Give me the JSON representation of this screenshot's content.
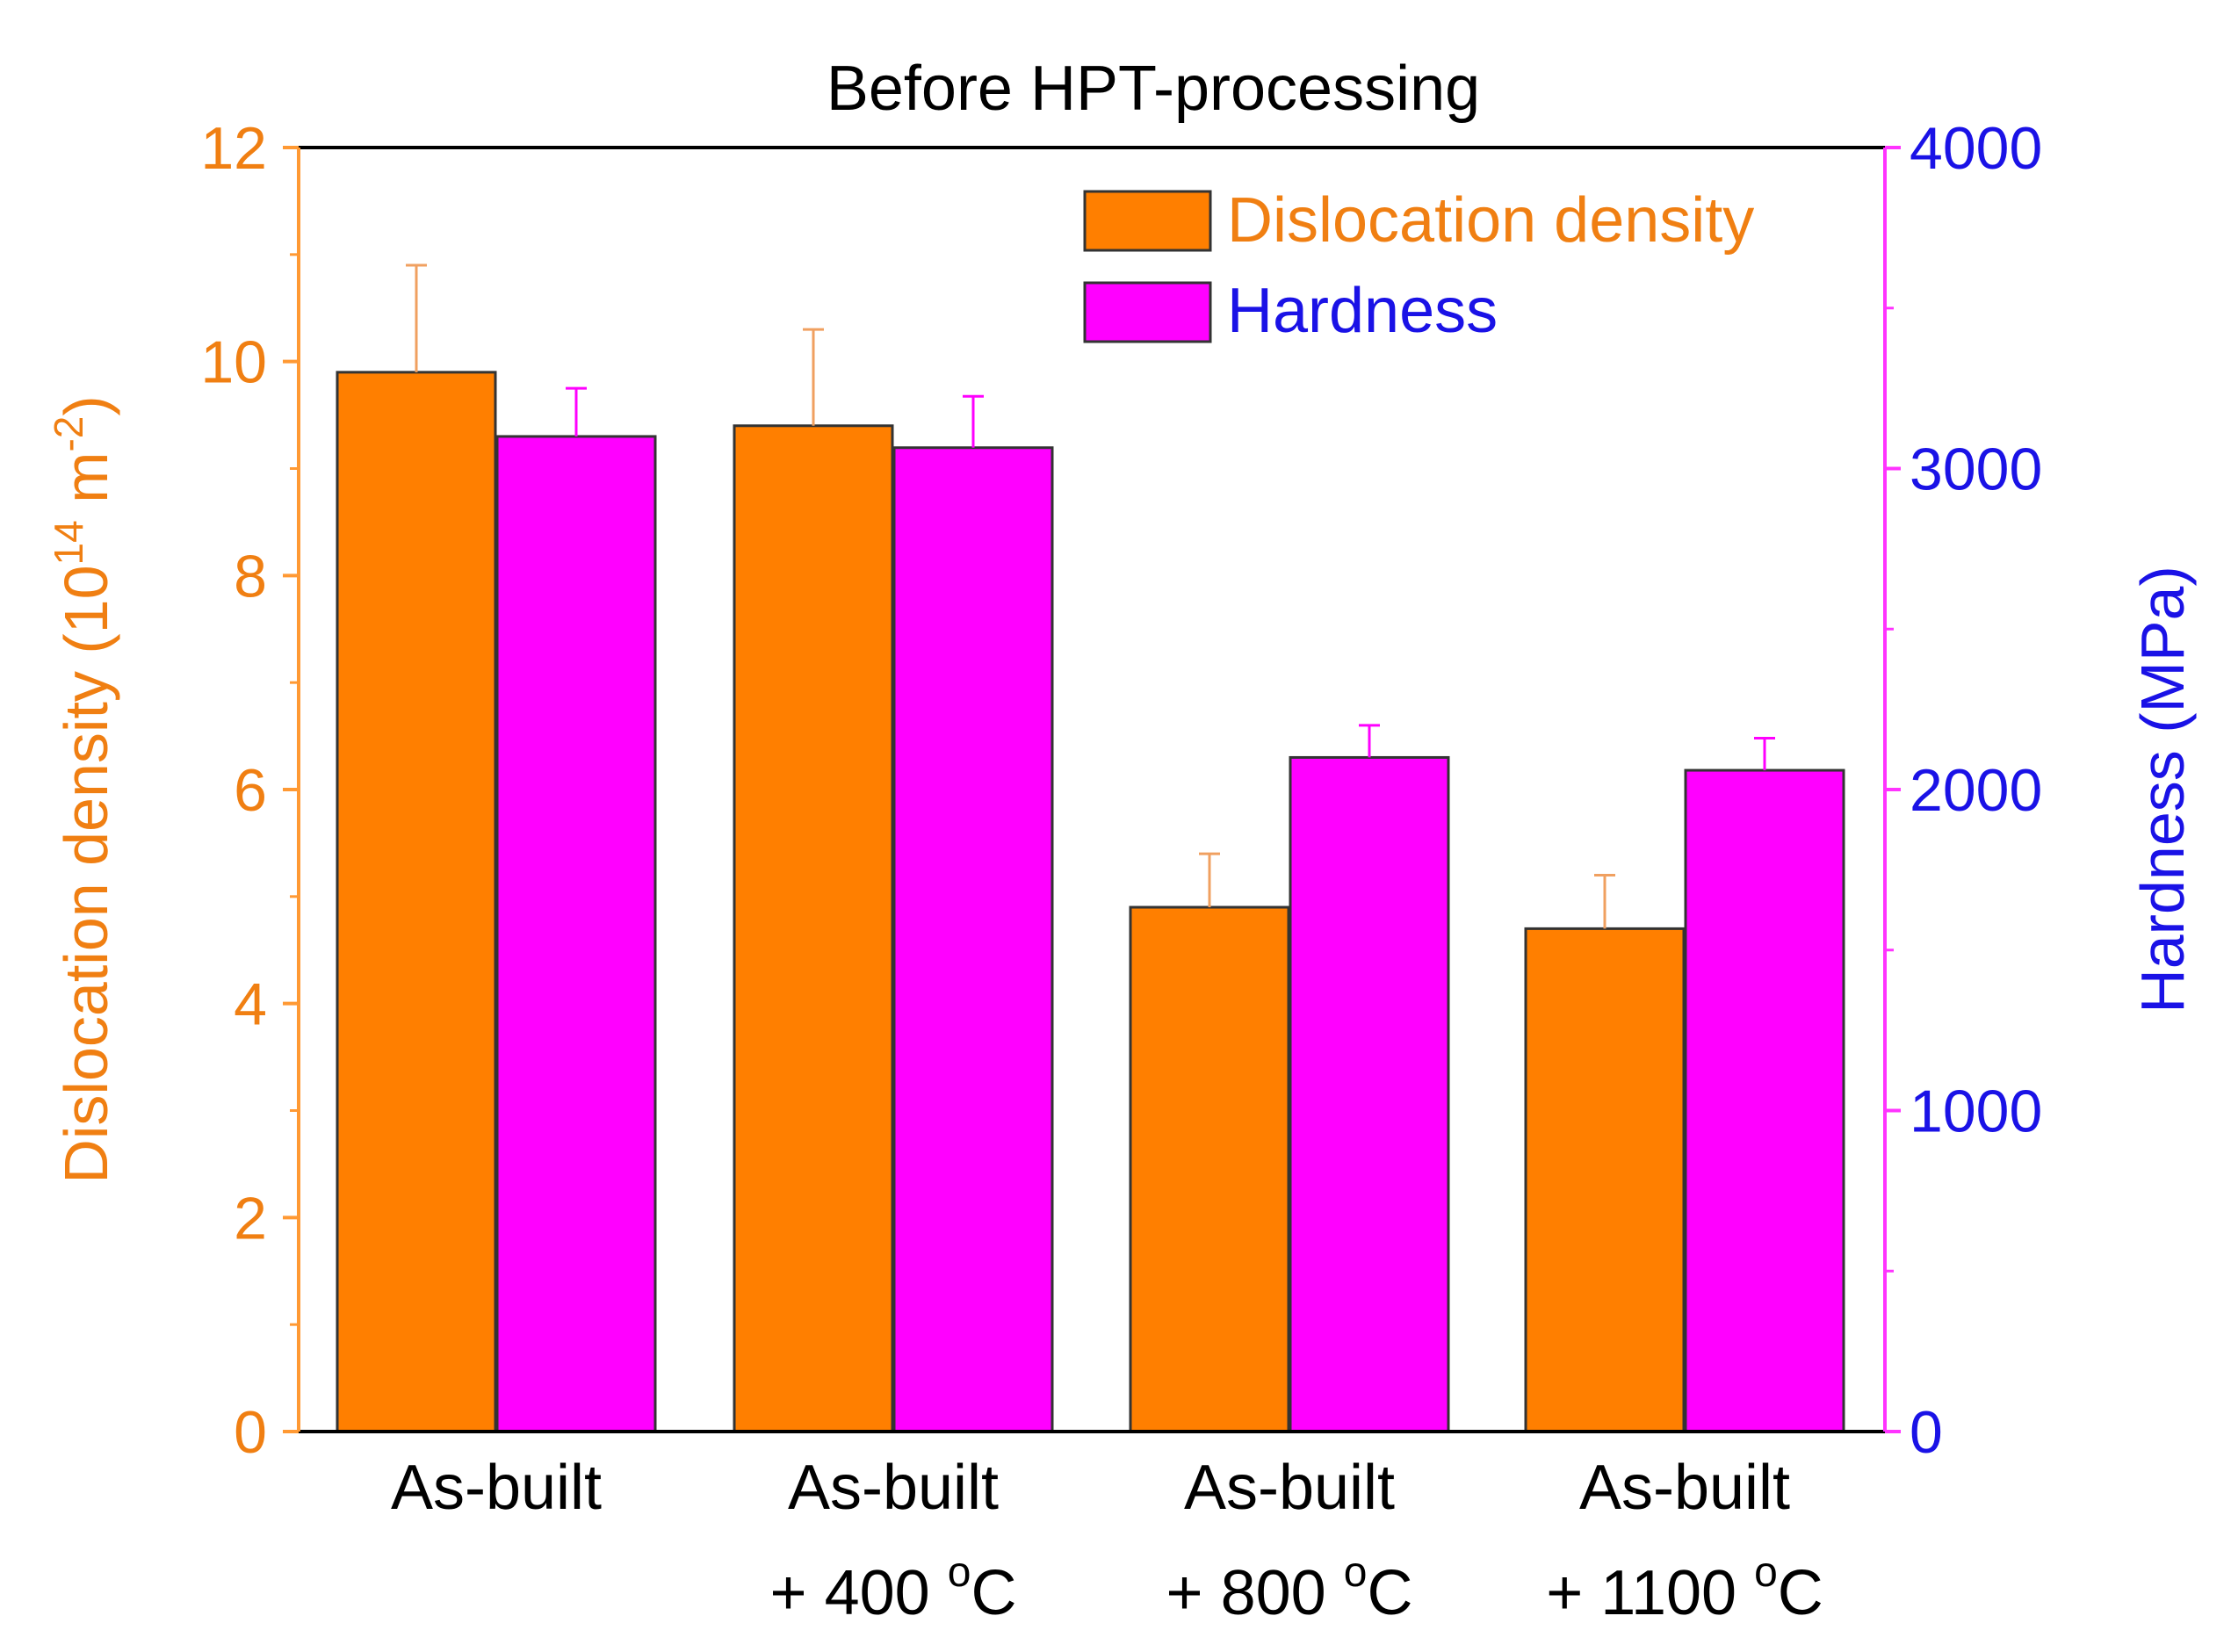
{
  "chart_data": {
    "type": "bar",
    "title": "Before HPT-processing",
    "categories": [
      {
        "line1": "As-built",
        "line2": "",
        "deg": "",
        "unit": ""
      },
      {
        "line1": "As-built",
        "line2": "+ 400 ",
        "deg": "o",
        "unit": "C"
      },
      {
        "line1": "As-built",
        "line2": "+ 800 ",
        "deg": "o",
        "unit": "C"
      },
      {
        "line1": "As-built",
        "line2": "+ 1100 ",
        "deg": "o",
        "unit": "C"
      }
    ],
    "series": [
      {
        "name": "Dislocation density",
        "axis": "left",
        "color": "#ff7f00",
        "label_color": "#f07f12",
        "errcolor": "#f0a060",
        "values": [
          9.9,
          9.4,
          4.9,
          4.7
        ],
        "errors": [
          1.0,
          0.9,
          0.5,
          0.5
        ]
      },
      {
        "name": "Hardness",
        "axis": "right",
        "color": "#ff00ff",
        "label_color": "#1a12e6",
        "errcolor": "#ff00ff",
        "values": [
          3100,
          3065,
          2100,
          2060
        ],
        "errors": [
          150,
          160,
          100,
          100
        ]
      }
    ],
    "y_left": {
      "label_main": "Dislocation density (10",
      "label_sup1": "14",
      "label_mid": " m",
      "label_sup2": "-2",
      "label_end": ")",
      "ylim": [
        0,
        12
      ],
      "ticks": [
        0,
        2,
        4,
        6,
        8,
        10,
        12
      ],
      "color": "#f07f12",
      "axis_color": "#ff9933"
    },
    "y_right": {
      "label": "Hardness (MPa)",
      "ylim": [
        0,
        4000
      ],
      "ticks": [
        0,
        1000,
        2000,
        3000,
        4000
      ],
      "color": "#1a12e6",
      "axis_color": "#ff33ff"
    },
    "legend": "top-right",
    "grid": false
  }
}
